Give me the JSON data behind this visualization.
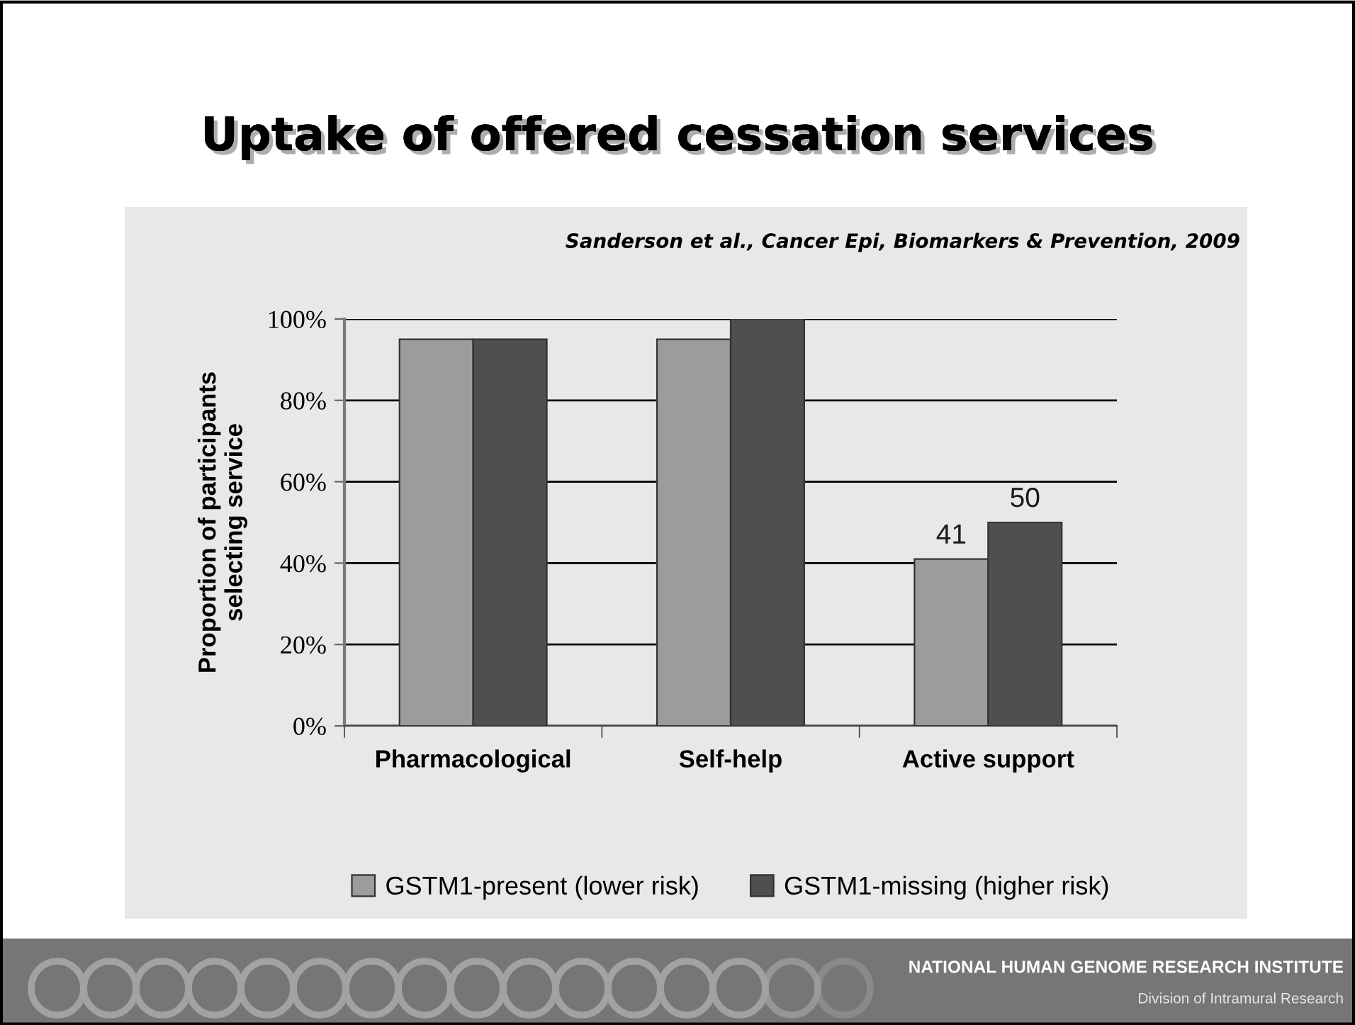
{
  "chart_data": {
    "type": "bar",
    "title": "Uptake of offered cessation services",
    "ylabel": "Proportion of participants\nselecting service",
    "categories": [
      "Pharmacological",
      "Self-help",
      "Active support"
    ],
    "series": [
      {
        "name": "GSTM1-present (lower risk)",
        "color": "#9c9c9c",
        "values": [
          95,
          95,
          41
        ],
        "value_labels": [
          null,
          null,
          "41"
        ]
      },
      {
        "name": "GSTM1-missing (higher risk)",
        "color": "#4f4f4f",
        "values": [
          95,
          100,
          50
        ],
        "value_labels": [
          null,
          null,
          "50"
        ]
      }
    ],
    "ylim": [
      0,
      100
    ],
    "yticks": [
      {
        "value": 0,
        "label": "0%"
      },
      {
        "value": 20,
        "label": "20%"
      },
      {
        "value": 40,
        "label": "40%"
      },
      {
        "value": 60,
        "label": "60%"
      },
      {
        "value": 80,
        "label": "80%"
      },
      {
        "value": 100,
        "label": "100%"
      }
    ],
    "grid": "y",
    "legend": "bottom",
    "annotations": [
      "Sanderson et al., Cancer Epi, Biomarkers & Prevention, 2009",
      "NATIONAL HUMAN GENOME RESEARCH INSTITUTE",
      "Division of Intramural Research"
    ]
  }
}
